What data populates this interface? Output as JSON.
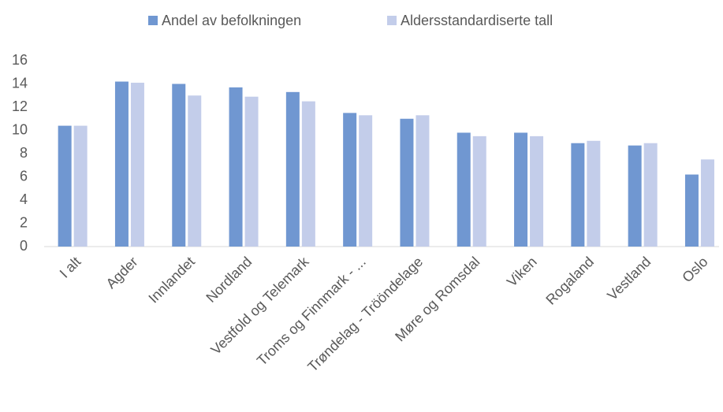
{
  "chart_data": {
    "type": "bar",
    "categories": [
      "I alt",
      "Agder",
      "Innlandet",
      "Nordland",
      "Vestfold og Telemark",
      "Troms og Finnmark - ...",
      "Trøndelag - Trööndelage",
      "Møre og Romsdal",
      "Viken",
      "Rogaland",
      "Vestland",
      "Oslo"
    ],
    "series": [
      {
        "name": "Andel av befolkningen",
        "color": "#7097d1",
        "values": [
          10.4,
          14.2,
          14.0,
          13.7,
          13.3,
          11.5,
          11.0,
          9.8,
          9.8,
          8.9,
          8.7,
          6.2
        ]
      },
      {
        "name": "Aldersstandardiserte tall",
        "color": "#c3cdea",
        "values": [
          10.4,
          14.1,
          13.0,
          12.9,
          12.5,
          11.3,
          11.3,
          9.5,
          9.5,
          9.1,
          8.9,
          7.5
        ]
      }
    ],
    "ylim": [
      0,
      16
    ],
    "yticks": [
      0,
      2,
      4,
      6,
      8,
      10,
      12,
      14,
      16
    ],
    "grid": false,
    "legend": "top"
  }
}
